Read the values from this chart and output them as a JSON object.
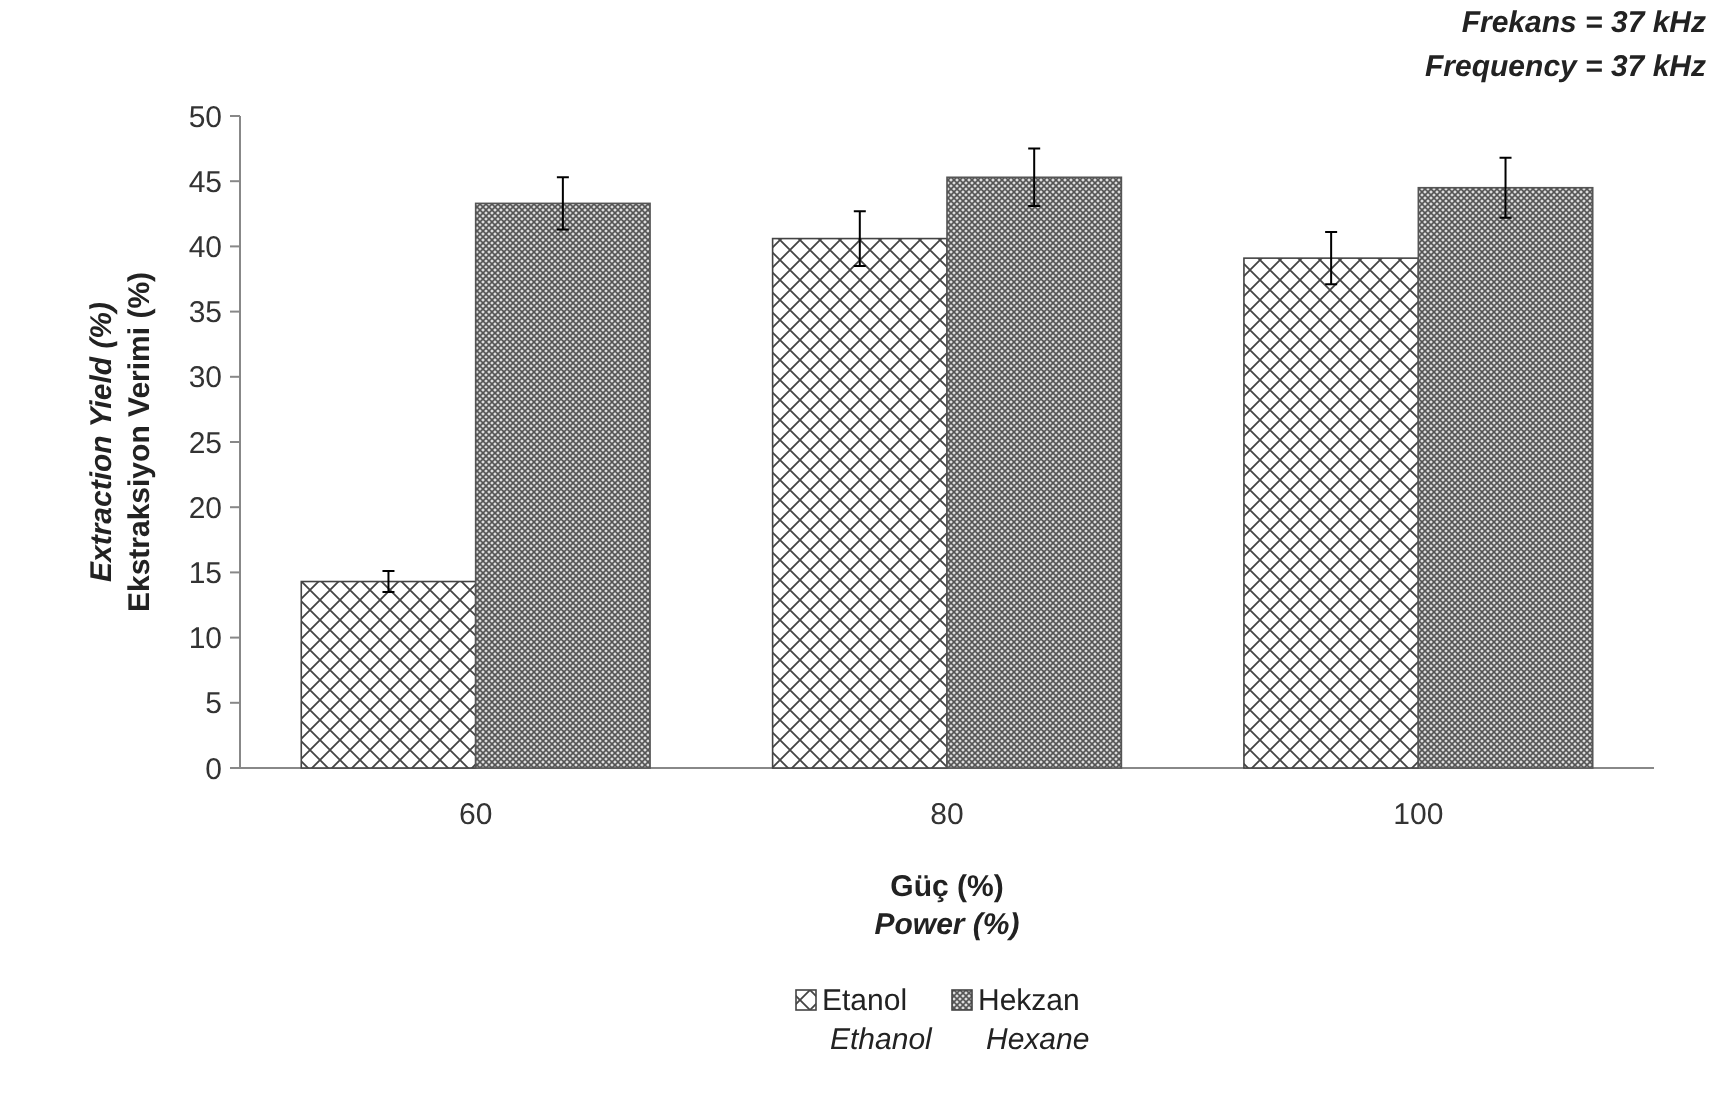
{
  "chart_data": {
    "type": "bar",
    "categories": [
      "60",
      "80",
      "100"
    ],
    "series": [
      {
        "name": "Etanol\nEthanol",
        "color": "#444444",
        "values": [
          14.3,
          40.6,
          39.1
        ],
        "errors": [
          0.8,
          2.1,
          2.0
        ]
      },
      {
        "name": "Hekzan\nHexane",
        "color": "#555555",
        "values": [
          43.3,
          45.3,
          44.5
        ],
        "errors": [
          2.0,
          2.2,
          2.3
        ]
      }
    ],
    "ylim": [
      0,
      50
    ],
    "yticks": [
      0,
      5,
      10,
      15,
      20,
      25,
      30,
      35,
      40,
      45,
      50
    ],
    "xlabel": "Güç (%)\nPower (%)",
    "ylabel": "Extraction Yield (%)\nEkstraksiyon Verimi (%)",
    "annotations": [
      "Frekans = 37 kHz\nFrequency = 37 kHz"
    ],
    "legend": "bottom",
    "grid": false
  }
}
